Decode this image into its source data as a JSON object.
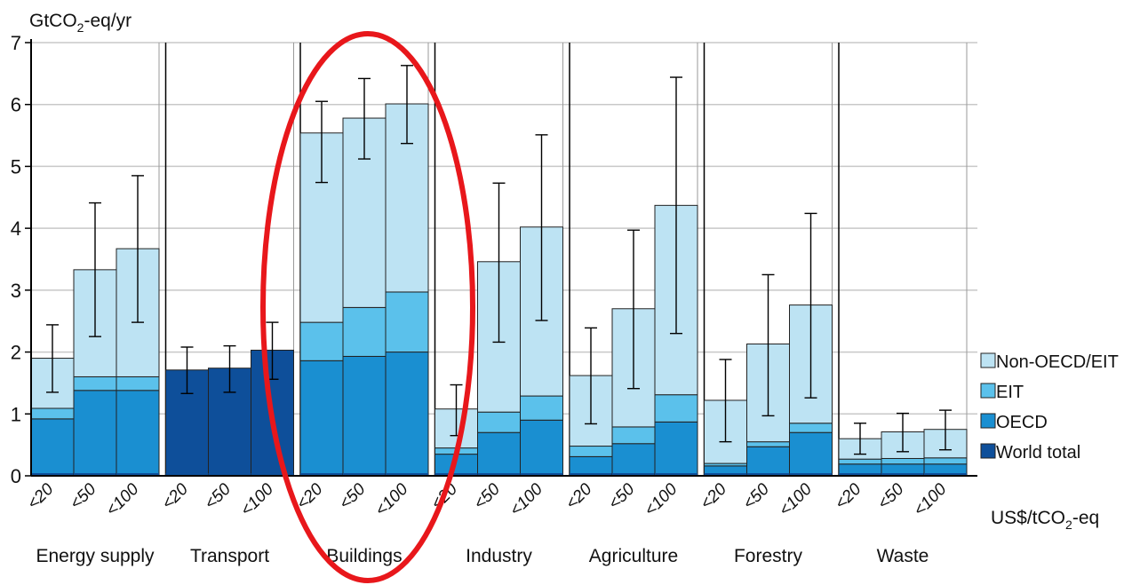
{
  "chart_data": {
    "type": "bar",
    "stacked": true,
    "y_axis": {
      "unit_prefix": "GtCO",
      "unit_sub": "2",
      "unit_suffix": "-eq/yr",
      "ylim": [
        0,
        7
      ],
      "ticks": [
        "0",
        "1",
        "2",
        "3",
        "4",
        "5",
        "6",
        "7"
      ]
    },
    "x_unit": {
      "prefix": "US$/tCO",
      "sub": "2",
      "suffix": "-eq"
    },
    "price_labels": [
      "<20",
      "<50",
      "<100"
    ],
    "colors": {
      "Non-OECD/EIT": "#bde3f3",
      "EIT": "#5bc1eb",
      "OECD": "#1a8fd1",
      "World total": "#0e4f9a",
      "grid": "#c8c8c8",
      "ellipse": "#e8171b"
    },
    "legend": {
      "position": "right",
      "items": [
        "Non-OECD/EIT",
        "EIT",
        "OECD",
        "World total"
      ]
    },
    "annotation": {
      "type": "ellipse",
      "target": "Buildings",
      "color": "#e8171b"
    },
    "sectors": [
      {
        "name": "Energy supply",
        "bars": [
          {
            "price": "<20",
            "OECD": 0.92,
            "EIT": 0.17,
            "Non-OECD/EIT": 0.81,
            "total": 1.9,
            "err": [
              1.35,
              2.44
            ]
          },
          {
            "price": "<50",
            "OECD": 1.38,
            "EIT": 0.22,
            "Non-OECD/EIT": 1.73,
            "total": 3.33,
            "err": [
              2.25,
              4.41
            ]
          },
          {
            "price": "<100",
            "OECD": 1.38,
            "EIT": 0.22,
            "Non-OECD/EIT": 2.07,
            "total": 3.67,
            "err": [
              2.48,
              4.85
            ]
          }
        ]
      },
      {
        "name": "Transport",
        "bars": [
          {
            "price": "<20",
            "World total": 1.71,
            "total": 1.71,
            "err": [
              1.33,
              2.08
            ]
          },
          {
            "price": "<50",
            "World total": 1.74,
            "total": 1.74,
            "err": [
              1.35,
              2.1
            ]
          },
          {
            "price": "<100",
            "World total": 2.03,
            "total": 2.03,
            "err": [
              1.56,
              2.48
            ]
          }
        ]
      },
      {
        "name": "Buildings",
        "bars": [
          {
            "price": "<20",
            "OECD": 1.86,
            "EIT": 0.62,
            "Non-OECD/EIT": 3.06,
            "total": 5.54,
            "err": [
              4.74,
              6.05
            ]
          },
          {
            "price": "<50",
            "OECD": 1.93,
            "EIT": 0.79,
            "Non-OECD/EIT": 3.06,
            "total": 5.78,
            "err": [
              5.12,
              6.42
            ]
          },
          {
            "price": "<100",
            "OECD": 2.0,
            "EIT": 0.97,
            "Non-OECD/EIT": 3.04,
            "total": 6.01,
            "err": [
              5.37,
              6.63
            ]
          }
        ]
      },
      {
        "name": "Industry",
        "bars": [
          {
            "price": "<20",
            "OECD": 0.35,
            "EIT": 0.1,
            "Non-OECD/EIT": 0.63,
            "total": 1.08,
            "err": [
              0.65,
              1.47
            ]
          },
          {
            "price": "<50",
            "OECD": 0.7,
            "EIT": 0.33,
            "Non-OECD/EIT": 2.43,
            "total": 3.46,
            "err": [
              2.16,
              4.73
            ]
          },
          {
            "price": "<100",
            "OECD": 0.9,
            "EIT": 0.39,
            "Non-OECD/EIT": 2.73,
            "total": 4.02,
            "err": [
              2.51,
              5.51
            ]
          }
        ]
      },
      {
        "name": "Agriculture",
        "bars": [
          {
            "price": "<20",
            "OECD": 0.31,
            "EIT": 0.17,
            "Non-OECD/EIT": 1.14,
            "total": 1.62,
            "err": [
              0.84,
              2.39
            ]
          },
          {
            "price": "<50",
            "OECD": 0.52,
            "EIT": 0.27,
            "Non-OECD/EIT": 1.91,
            "total": 2.7,
            "err": [
              1.41,
              3.97
            ]
          },
          {
            "price": "<100",
            "OECD": 0.87,
            "EIT": 0.44,
            "Non-OECD/EIT": 3.06,
            "total": 4.37,
            "err": [
              2.3,
              6.44
            ]
          }
        ]
      },
      {
        "name": "Forestry",
        "bars": [
          {
            "price": "<20",
            "OECD": 0.16,
            "EIT": 0.04,
            "Non-OECD/EIT": 1.02,
            "total": 1.22,
            "err": [
              0.55,
              1.88
            ]
          },
          {
            "price": "<50",
            "OECD": 0.47,
            "EIT": 0.08,
            "Non-OECD/EIT": 1.58,
            "total": 2.13,
            "err": [
              0.97,
              3.25
            ]
          },
          {
            "price": "<100",
            "OECD": 0.7,
            "EIT": 0.15,
            "Non-OECD/EIT": 1.91,
            "total": 2.76,
            "err": [
              1.26,
              4.24
            ]
          }
        ]
      },
      {
        "name": "Waste",
        "bars": [
          {
            "price": "<20",
            "OECD": 0.19,
            "EIT": 0.08,
            "Non-OECD/EIT": 0.33,
            "total": 0.6,
            "err": [
              0.35,
              0.85
            ]
          },
          {
            "price": "<50",
            "OECD": 0.19,
            "EIT": 0.09,
            "Non-OECD/EIT": 0.43,
            "total": 0.71,
            "err": [
              0.39,
              1.01
            ]
          },
          {
            "price": "<100",
            "OECD": 0.19,
            "EIT": 0.1,
            "Non-OECD/EIT": 0.46,
            "total": 0.75,
            "err": [
              0.42,
              1.06
            ]
          }
        ]
      }
    ]
  }
}
